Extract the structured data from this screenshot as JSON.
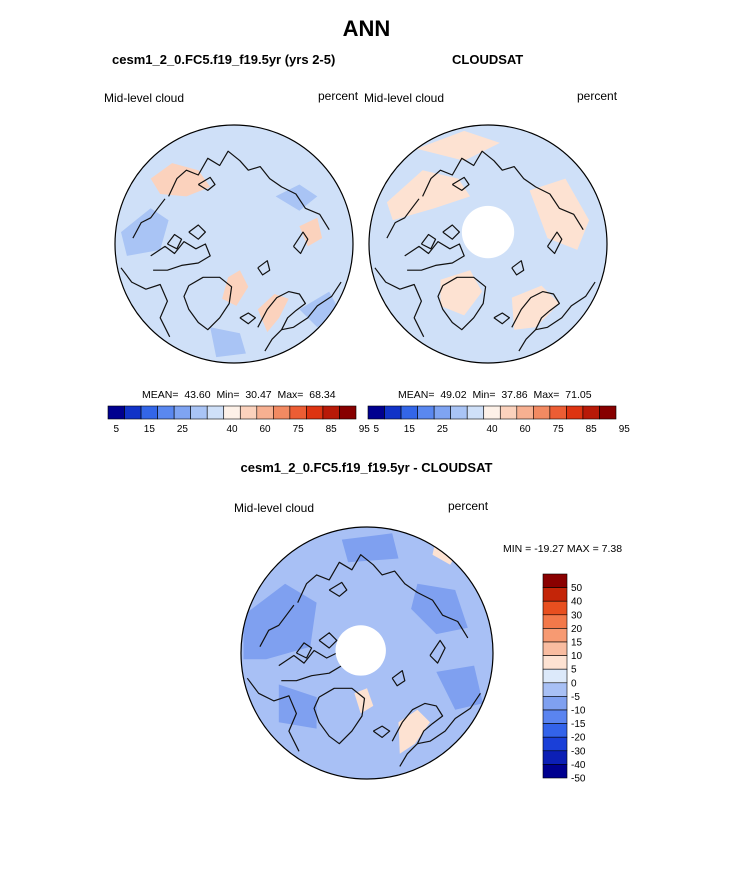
{
  "figure": {
    "title": "ANN",
    "diff_title": "cesm1_2_0.FC5.f19_f19.5yr - CLOUDSAT"
  },
  "colors": {
    "seq_palette": [
      "#00008f",
      "#1133c8",
      "#3366e8",
      "#5a88f0",
      "#7fa4f2",
      "#a9c4f5",
      "#cfe0f8",
      "#fdf1e8",
      "#fbd2bd",
      "#f7b091",
      "#f28a62",
      "#ec5d34",
      "#dd3411",
      "#b81a08",
      "#870000"
    ],
    "div_palette": [
      "#00008f",
      "#0c1fb5",
      "#1a3fd8",
      "#3363ea",
      "#5a84f0",
      "#7fa0f0",
      "#a8c0f5",
      "#dce9fa",
      "#fde2d2",
      "#f9bca0",
      "#f79a72",
      "#f3794a",
      "#e84f1f",
      "#c42508",
      "#8a0000"
    ]
  },
  "chart_data": [
    {
      "type": "heatmap",
      "panel": "model",
      "title": "cesm1_2_0.FC5.f19_f19.5yr (yrs 2-5)",
      "variable": "Mid-level cloud",
      "units": "percent",
      "projection": "north polar stereographic",
      "stats": {
        "mean_label": "MEAN=",
        "mean": "43.60",
        "min_label": "Min=",
        "min": "30.47",
        "max_label": "Max=",
        "max": "68.34"
      },
      "colorbar": {
        "orientation": "horizontal",
        "levels": [
          5,
          10,
          15,
          20,
          25,
          30,
          35,
          40,
          50,
          60,
          65,
          70,
          75,
          80,
          85,
          90,
          95
        ],
        "tick_labels": [
          "5",
          "15",
          "25",
          "40",
          "60",
          "75",
          "85",
          "95"
        ]
      }
    },
    {
      "type": "heatmap",
      "panel": "obs",
      "title": "CLOUDSAT",
      "variable": "Mid-level cloud",
      "units": "percent",
      "projection": "north polar stereographic",
      "missing_region": "pole",
      "stats": {
        "mean_label": "MEAN=",
        "mean": "49.02",
        "min_label": "Min=",
        "min": "37.86",
        "max_label": "Max=",
        "max": "71.05"
      },
      "colorbar": {
        "orientation": "horizontal",
        "levels": [
          5,
          10,
          15,
          20,
          25,
          30,
          35,
          40,
          50,
          60,
          65,
          70,
          75,
          80,
          85,
          90,
          95
        ],
        "tick_labels": [
          "5",
          "15",
          "25",
          "40",
          "60",
          "75",
          "85",
          "95"
        ]
      }
    },
    {
      "type": "heatmap",
      "panel": "difference",
      "title": "cesm1_2_0.FC5.f19_f19.5yr - CLOUDSAT",
      "variable": "Mid-level cloud",
      "units": "percent",
      "projection": "north polar stereographic",
      "missing_region": "pole",
      "stats": {
        "min_label": "MIN =",
        "min": "-19.27",
        "max_label": "MAX =",
        "max": "7.38"
      },
      "colorbar": {
        "orientation": "vertical",
        "tick_labels": [
          "50",
          "40",
          "30",
          "20",
          "15",
          "10",
          "5",
          "0",
          "-5",
          "-10",
          "-15",
          "-20",
          "-30",
          "-40",
          "-50"
        ]
      }
    }
  ]
}
